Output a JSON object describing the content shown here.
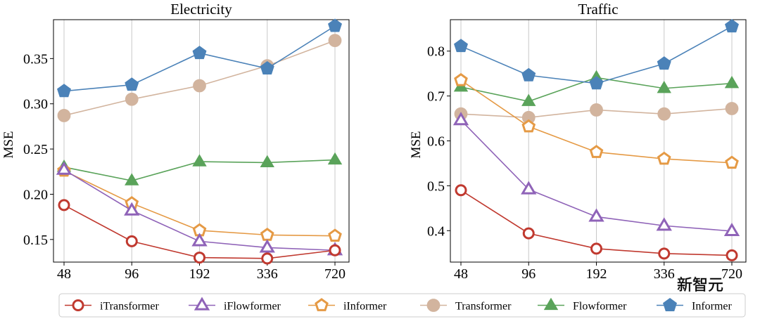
{
  "watermark": "新智元",
  "legend": [
    {
      "name": "iTransformer",
      "color": "#c0392f",
      "marker": "circle-open"
    },
    {
      "name": "iFlowformer",
      "color": "#8f63b8",
      "marker": "triangle-open"
    },
    {
      "name": "iInformer",
      "color": "#e59a45",
      "marker": "pentagon-open"
    },
    {
      "name": "Transformer",
      "color": "#d2b49e",
      "marker": "circle-filled"
    },
    {
      "name": "Flowformer",
      "color": "#5aa35a",
      "marker": "triangle-filled"
    },
    {
      "name": "Informer",
      "color": "#4b82b8",
      "marker": "pentagon-filled"
    }
  ],
  "chart_data": [
    {
      "type": "line",
      "title": "Electricity",
      "xlabel": "",
      "ylabel": "MSE",
      "categories": [
        "48",
        "96",
        "192",
        "336",
        "720"
      ],
      "ylim": [
        0.125,
        0.393
      ],
      "yticks": [
        0.15,
        0.2,
        0.25,
        0.3,
        0.35
      ],
      "ytick_labels": [
        "0.15",
        "0.20",
        "0.25",
        "0.30",
        "0.35"
      ],
      "grid": "vertical",
      "series": [
        {
          "name": "iTransformer",
          "values": [
            0.188,
            0.148,
            0.13,
            0.129,
            0.138
          ]
        },
        {
          "name": "iFlowformer",
          "values": [
            0.227,
            0.182,
            0.148,
            0.141,
            0.138
          ]
        },
        {
          "name": "iInformer",
          "values": [
            0.226,
            0.19,
            0.16,
            0.155,
            0.154
          ]
        },
        {
          "name": "Transformer",
          "values": [
            0.287,
            0.305,
            0.32,
            0.342,
            0.37
          ]
        },
        {
          "name": "Flowformer",
          "values": [
            0.23,
            0.215,
            0.236,
            0.235,
            0.238
          ]
        },
        {
          "name": "Informer",
          "values": [
            0.314,
            0.321,
            0.356,
            0.339,
            0.386
          ]
        }
      ]
    },
    {
      "type": "line",
      "title": "Traffic",
      "xlabel": "",
      "ylabel": "MSE",
      "categories": [
        "48",
        "96",
        "192",
        "336",
        "720"
      ],
      "ylim": [
        0.33,
        0.87
      ],
      "yticks": [
        0.4,
        0.5,
        0.6,
        0.7,
        0.8
      ],
      "ytick_labels": [
        "0.4",
        "0.5",
        "0.6",
        "0.7",
        "0.8"
      ],
      "grid": "vertical",
      "series": [
        {
          "name": "iTransformer",
          "values": [
            0.49,
            0.394,
            0.36,
            0.349,
            0.345
          ]
        },
        {
          "name": "iFlowformer",
          "values": [
            0.646,
            0.492,
            0.431,
            0.411,
            0.399
          ]
        },
        {
          "name": "iInformer",
          "values": [
            0.735,
            0.632,
            0.575,
            0.56,
            0.551
          ]
        },
        {
          "name": "Transformer",
          "values": [
            0.66,
            0.652,
            0.669,
            0.66,
            0.672
          ]
        },
        {
          "name": "Flowformer",
          "values": [
            0.72,
            0.688,
            0.741,
            0.717,
            0.728
          ]
        },
        {
          "name": "Informer",
          "values": [
            0.811,
            0.746,
            0.728,
            0.772,
            0.855
          ]
        }
      ]
    }
  ]
}
